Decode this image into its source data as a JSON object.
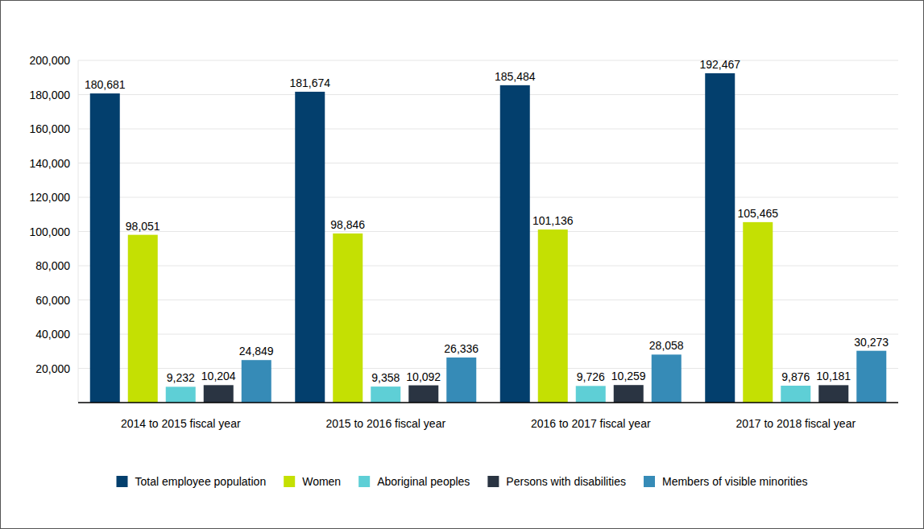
{
  "chart_data": {
    "type": "bar",
    "categories": [
      "2014 to 2015 fiscal year",
      "2015 to 2016 fiscal year",
      "2016 to 2017 fiscal year",
      "2017 to 2018 fiscal year"
    ],
    "series": [
      {
        "name": "Total employee population",
        "color": "#033f6d",
        "values": [
          180681,
          181674,
          185484,
          192467
        ],
        "value_labels": [
          "180,681",
          "181,674",
          "185,484",
          "192,467"
        ]
      },
      {
        "name": "Women",
        "color": "#c4e003",
        "values": [
          98051,
          98846,
          101136,
          105465
        ],
        "value_labels": [
          "98,051",
          "98,846",
          "101,136",
          "105,465"
        ]
      },
      {
        "name": "Aboriginal peoples",
        "color": "#5ecfd6",
        "values": [
          9232,
          9358,
          9726,
          9876
        ],
        "value_labels": [
          "9,232",
          "9,358",
          "9,726",
          "9,876"
        ]
      },
      {
        "name": "Persons with disabilities",
        "color": "#2a3442",
        "values": [
          10204,
          10092,
          10259,
          10181
        ],
        "value_labels": [
          "10,204",
          "10,092",
          "10,259",
          "10,181"
        ]
      },
      {
        "name": "Members of visible minorities",
        "color": "#368bb7",
        "values": [
          24849,
          26336,
          28058,
          30273
        ],
        "value_labels": [
          "24,849",
          "26,336",
          "28,058",
          "30,273"
        ]
      }
    ],
    "ylim": [
      0,
      200000
    ],
    "yticks": [
      {
        "value": 20000,
        "label": "20,000"
      },
      {
        "value": 40000,
        "label": "40,000"
      },
      {
        "value": 60000,
        "label": "60,000"
      },
      {
        "value": 80000,
        "label": "80,000"
      },
      {
        "value": 100000,
        "label": "100,000"
      },
      {
        "value": 120000,
        "label": "120,000"
      },
      {
        "value": 140000,
        "label": "140,000"
      },
      {
        "value": 160000,
        "label": "160,000"
      },
      {
        "value": 180000,
        "label": "180,000"
      },
      {
        "value": 200000,
        "label": "200,000"
      }
    ],
    "grid": true,
    "data_labels": true,
    "legend": "bottom"
  }
}
